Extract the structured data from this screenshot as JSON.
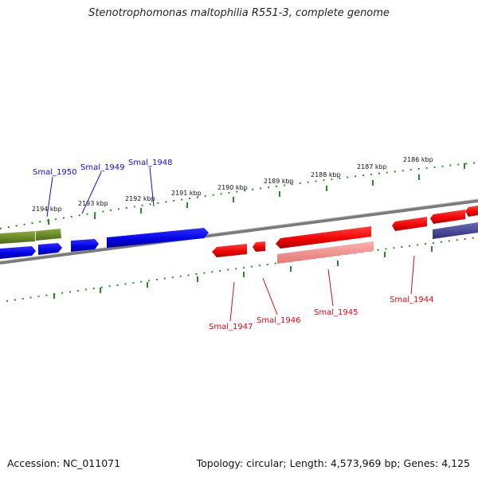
{
  "title": "Stenotrophomonas maltophilia R551-3, complete genome",
  "footer": {
    "accession": "Accession: NC_011071",
    "summary": "Topology: circular; Length: 4,573,969 bp; Genes: 4,125"
  },
  "scale_labels": {
    "k2194": "2194 kbp",
    "k2193": "2193 kbp",
    "k2192": "2192 kbp",
    "k2191": "2191 kbp",
    "k2190": "2190 kbp",
    "k2189": "2189 kbp",
    "k2188": "2188 kbp",
    "k2187": "2187 kbp",
    "k2186": "2186 kbp"
  },
  "gene_labels": {
    "smal_1950": "Smal_1950",
    "smal_1949": "Smal_1949",
    "smal_1948": "Smal_1948",
    "smal_1947": "Smal_1947",
    "smal_1946": "Smal_1946",
    "smal_1945": "Smal_1945",
    "smal_1944": "Smal_1944"
  },
  "colors": {
    "forward_gene": "#0a0ae0",
    "reverse_gene": "#ee1111",
    "reverse_gene_light": "#f09090",
    "other_gene_green": "#6a8c28",
    "other_gene_purple": "#4a4a9a",
    "backbone": "#7a7a7a",
    "ticks": "#2a8a2a",
    "label_blue": "#1010cc",
    "label_red": "#cc1010"
  }
}
